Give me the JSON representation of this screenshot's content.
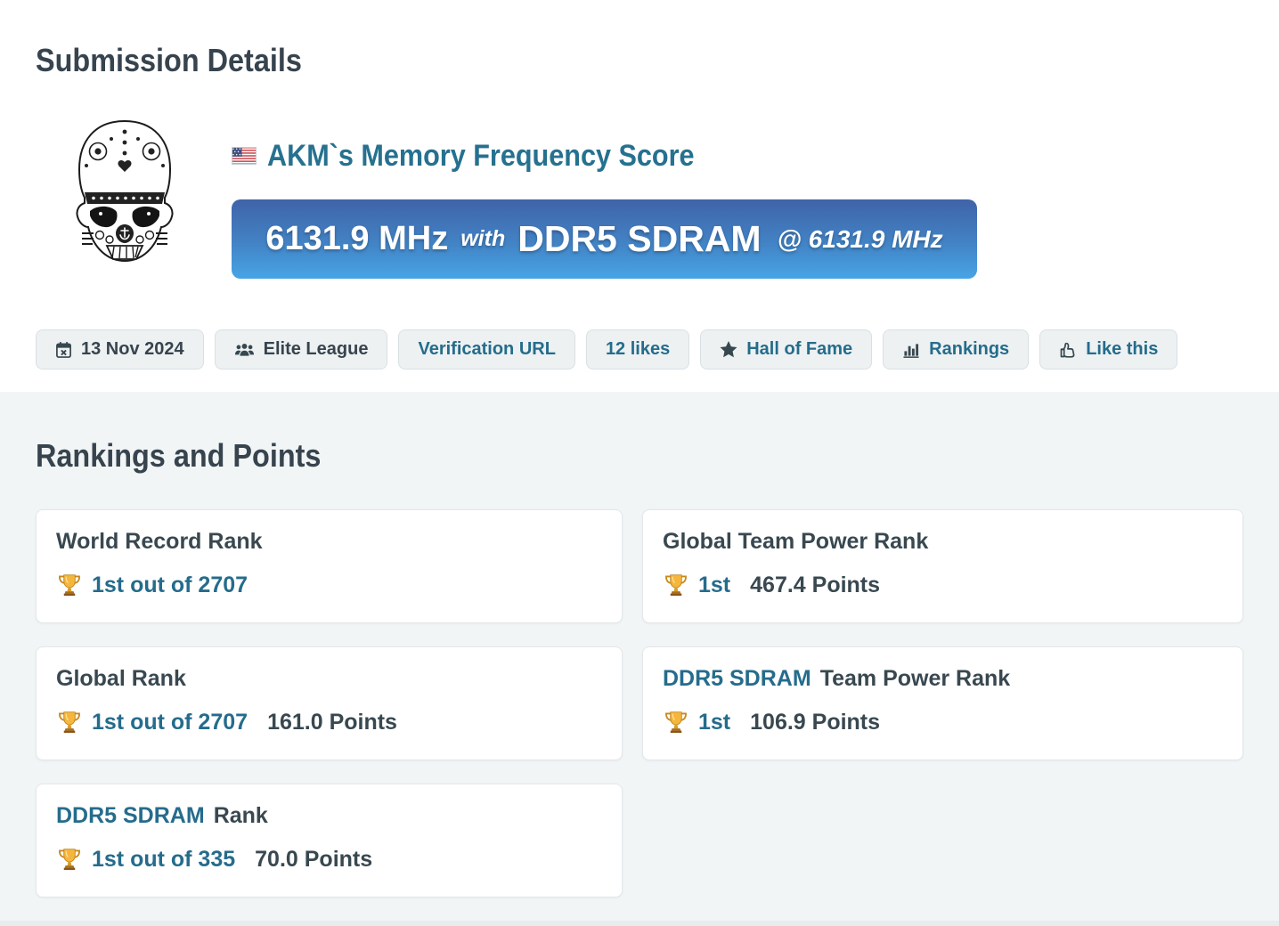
{
  "page": {
    "section1_title": "Submission Details",
    "section2_title": "Rankings and Points"
  },
  "submission": {
    "title": "AKM`s Memory Frequency Score",
    "score": "6131.9 MHz",
    "with_word": "with",
    "hardware": "DDR5 SDRAM",
    "at_clock": "@ 6131.9 MHz"
  },
  "icons": {
    "flag": "us-flag-icon",
    "trophy": "trophy-icon",
    "avatar": "stormtrooper-skull-avatar"
  },
  "meta_buttons": [
    {
      "name": "date-button",
      "label": "13 Nov 2024",
      "icon": "calendar-icon",
      "text_style": "dark"
    },
    {
      "name": "league-button",
      "label": "Elite League",
      "icon": "users-icon",
      "text_style": "dark"
    },
    {
      "name": "verification-url-button",
      "label": "Verification URL",
      "icon": null,
      "text_style": "teal"
    },
    {
      "name": "likes-button",
      "label": "12 likes",
      "icon": null,
      "text_style": "teal"
    },
    {
      "name": "hall-of-fame-button",
      "label": "Hall of Fame",
      "icon": "star-icon",
      "text_style": "teal"
    },
    {
      "name": "rankings-button",
      "label": "Rankings",
      "icon": "bar-chart-icon",
      "text_style": "teal"
    },
    {
      "name": "like-this-button",
      "label": "Like this",
      "icon": "thumbs-up-icon",
      "text_style": "teal"
    }
  ],
  "rankings": [
    {
      "name": "world-record-rank-card",
      "title_link": "",
      "title": "World Record Rank",
      "rank": "1st out of 2707",
      "points": ""
    },
    {
      "name": "global-team-power-rank-card",
      "title_link": "",
      "title": "Global Team Power Rank",
      "rank": "1st",
      "points": "467.4 Points"
    },
    {
      "name": "global-rank-card",
      "title_link": "",
      "title": "Global Rank",
      "rank": "1st out of 2707",
      "points": "161.0 Points"
    },
    {
      "name": "ddr5-team-power-rank-card",
      "title_link": "DDR5 SDRAM",
      "title": "Team Power Rank",
      "rank": "1st",
      "points": "106.9 Points"
    },
    {
      "name": "ddr5-rank-card",
      "title_link": "DDR5 SDRAM",
      "title": "Rank",
      "rank": "1st out of 335",
      "points": "70.0 Points"
    }
  ],
  "colors": {
    "heading": "#37444e",
    "teal_link": "#256c8c",
    "title_teal": "#26718f",
    "banner_gradient_top": "#4063a8",
    "banner_gradient_bottom": "#47a4e6",
    "button_bg": "#edf1f2",
    "button_border": "#d9e0e3",
    "section_bg": "#f1f5f6",
    "card_border": "#e3e7e9",
    "trophy_gold": "#f5b63e",
    "trophy_base": "#8a551a"
  }
}
